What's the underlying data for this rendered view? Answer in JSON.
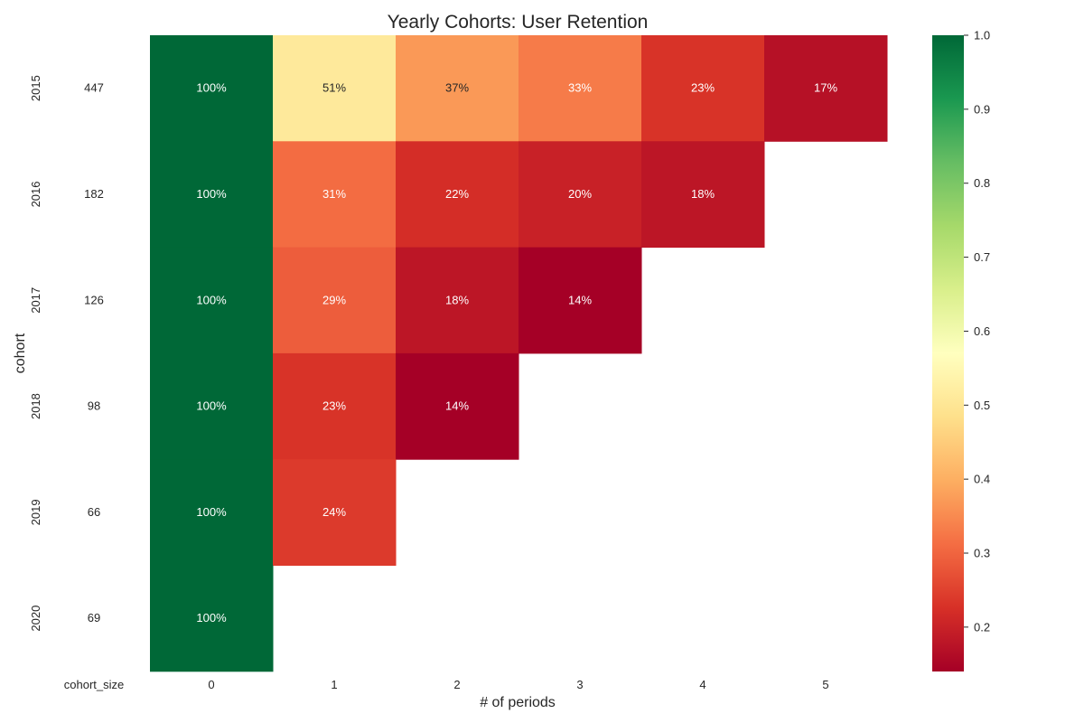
{
  "chart_data": [
    {
      "type": "table",
      "title": "",
      "xlabel": "",
      "ylabel": "cohort",
      "column_header": "cohort_size",
      "categories": [
        "2015",
        "2016",
        "2017",
        "2018",
        "2019",
        "2020"
      ],
      "values": [
        447,
        182,
        126,
        98,
        66,
        69
      ]
    },
    {
      "type": "heatmap",
      "title": "Yearly Cohorts: User Retention",
      "xlabel": "# of periods",
      "ylabel": "cohort",
      "x": [
        "0",
        "1",
        "2",
        "3",
        "4",
        "5"
      ],
      "y": [
        "2015",
        "2016",
        "2017",
        "2018",
        "2019",
        "2020"
      ],
      "values": [
        [
          1.0,
          0.51,
          0.37,
          0.33,
          0.23,
          0.17
        ],
        [
          1.0,
          0.31,
          0.22,
          0.2,
          0.18,
          null
        ],
        [
          1.0,
          0.29,
          0.18,
          0.14,
          null,
          null
        ],
        [
          1.0,
          0.23,
          0.14,
          null,
          null,
          null
        ],
        [
          1.0,
          0.24,
          null,
          null,
          null,
          null
        ],
        [
          1.0,
          null,
          null,
          null,
          null,
          null
        ]
      ],
      "value_format": "percent",
      "colormap": "RdYlGn",
      "colorbar": {
        "range": [
          0.14,
          1.0
        ],
        "ticks": [
          "0.2",
          "0.3",
          "0.4",
          "0.5",
          "0.6",
          "0.7",
          "0.8",
          "0.9",
          "1.0"
        ]
      },
      "grid": false
    }
  ]
}
